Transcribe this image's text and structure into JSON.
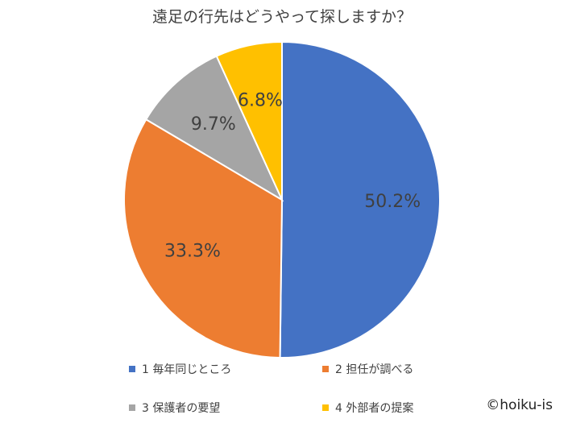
{
  "chart_data": {
    "type": "pie",
    "title": "遠足の行先はどうやって探しますか？",
    "categories": [
      "1 毎年同じところ",
      "2 担任が調べる",
      "3 保護者の要望",
      "4 外部者の提案"
    ],
    "values": [
      50.2,
      33.3,
      9.7,
      6.8
    ],
    "labels": [
      "50.2%",
      "33.3%",
      "9.7%",
      "6.8%"
    ],
    "colors": [
      "#4472C4",
      "#ED7D31",
      "#A5A5A5",
      "#FFC000"
    ],
    "legend_position": "bottom"
  },
  "credit": "©hoiku-is"
}
